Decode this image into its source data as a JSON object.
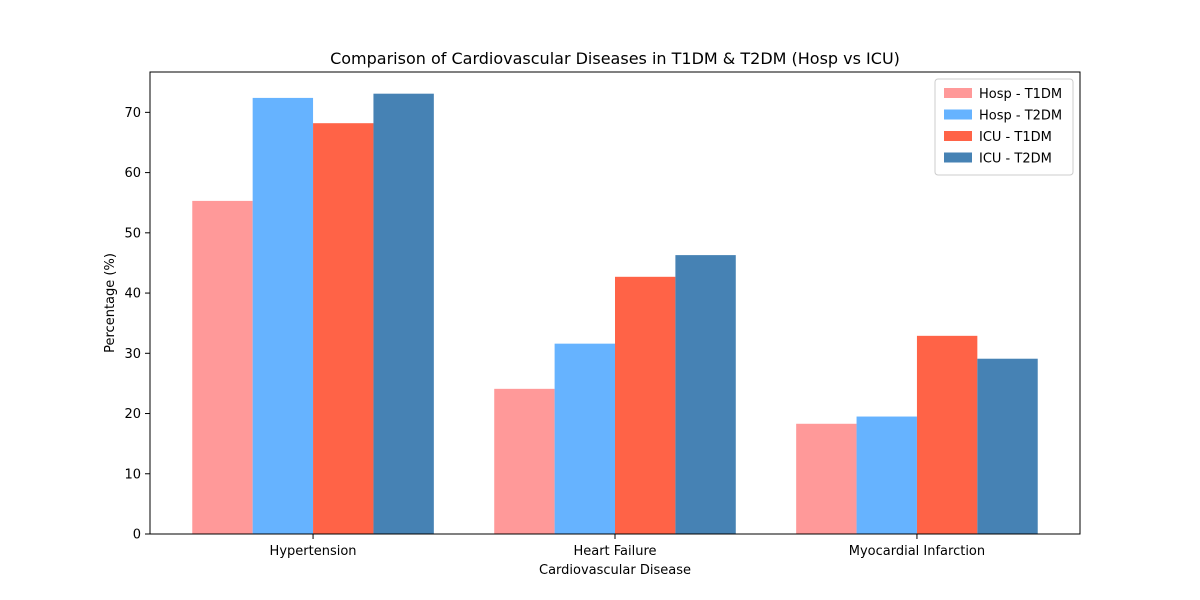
{
  "chart_data": {
    "type": "bar",
    "title": "Comparison of Cardiovascular Diseases in T1DM & T2DM (Hosp vs ICU)",
    "xlabel": "Cardiovascular Disease",
    "ylabel": "Percentage (%)",
    "categories": [
      "Hypertension",
      "Heart Failure",
      "Myocardial Infarction"
    ],
    "series": [
      {
        "name": "Hosp - T1DM",
        "color": "#ff9999",
        "values": [
          55.3,
          24.1,
          18.3
        ]
      },
      {
        "name": "Hosp - T2DM",
        "color": "#66b3ff",
        "values": [
          72.4,
          31.6,
          19.5
        ]
      },
      {
        "name": "ICU - T1DM",
        "color": "#ff6347",
        "values": [
          68.2,
          42.7,
          32.9
        ]
      },
      {
        "name": "ICU - T2DM",
        "color": "#4682b4",
        "values": [
          73.1,
          46.3,
          29.1
        ]
      }
    ],
    "ylim": [
      0,
      76.7
    ],
    "yticks": [
      0,
      10,
      20,
      30,
      40,
      50,
      60,
      70
    ],
    "grid": false,
    "legend_position": "top-right"
  }
}
